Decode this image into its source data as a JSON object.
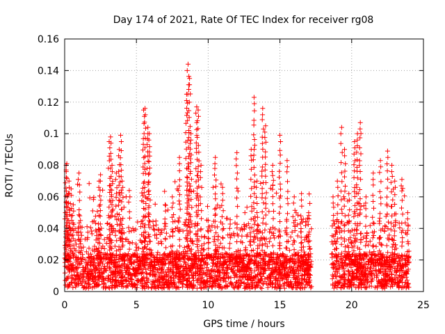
{
  "chart_data": {
    "type": "scatter",
    "title": "Day 174 of 2021, Rate Of TEC Index for receiver rg08",
    "xlabel": "GPS time / hours",
    "ylabel": "ROTI / TECUs",
    "xlim": [
      0,
      25
    ],
    "ylim": [
      0,
      0.16
    ],
    "x_ticks": [
      "0",
      "5",
      "10",
      "15",
      "20",
      "25"
    ],
    "y_ticks": [
      "0",
      "0.02",
      "0.04",
      "0.06",
      "0.08",
      "0.1",
      "0.12",
      "0.14",
      "0.16"
    ],
    "grid": true,
    "marker": "plus",
    "color": "#ff0000",
    "data_gap": [
      17.2,
      18.6
    ],
    "series": [
      {
        "x": [
          0.05,
          0.1,
          0.15,
          0.2,
          0.25,
          0.3,
          0.35,
          0.45,
          0.6,
          0.8,
          1.0,
          1.1,
          2.4,
          2.5,
          3.1,
          3.2,
          3.3,
          3.6,
          3.8,
          3.9,
          4.0,
          4.5,
          5.5,
          5.6,
          5.8,
          5.9,
          7.0,
          7.5,
          8.0,
          8.5,
          8.6,
          8.7,
          8.8,
          9.2,
          9.3,
          9.5,
          10.0,
          10.5,
          11.0,
          11.5,
          12.0,
          13.0,
          13.2,
          13.4,
          13.8,
          14.0,
          14.5,
          15.0,
          15.5,
          16.0,
          16.5,
          17.0,
          18.7,
          19.0,
          19.3,
          19.5,
          19.8,
          20.2,
          20.4,
          20.6,
          21.0,
          21.5,
          22.0,
          22.5,
          22.8,
          23.0,
          23.5,
          23.9
        ],
        "y": [
          0.05,
          0.08,
          0.081,
          0.06,
          0.045,
          0.07,
          0.04,
          0.065,
          0.055,
          0.03,
          0.075,
          0.045,
          0.07,
          0.074,
          0.095,
          0.098,
          0.08,
          0.075,
          0.09,
          0.099,
          0.07,
          0.064,
          0.115,
          0.116,
          0.104,
          0.1,
          0.055,
          0.06,
          0.085,
          0.125,
          0.144,
          0.135,
          0.1,
          0.117,
          0.115,
          0.08,
          0.045,
          0.085,
          0.066,
          0.04,
          0.088,
          0.09,
          0.123,
          0.07,
          0.116,
          0.105,
          0.08,
          0.099,
          0.083,
          0.06,
          0.062,
          0.05,
          0.06,
          0.07,
          0.104,
          0.09,
          0.062,
          0.095,
          0.1,
          0.107,
          0.06,
          0.075,
          0.083,
          0.089,
          0.08,
          0.07,
          0.071,
          0.05
        ]
      }
    ]
  }
}
